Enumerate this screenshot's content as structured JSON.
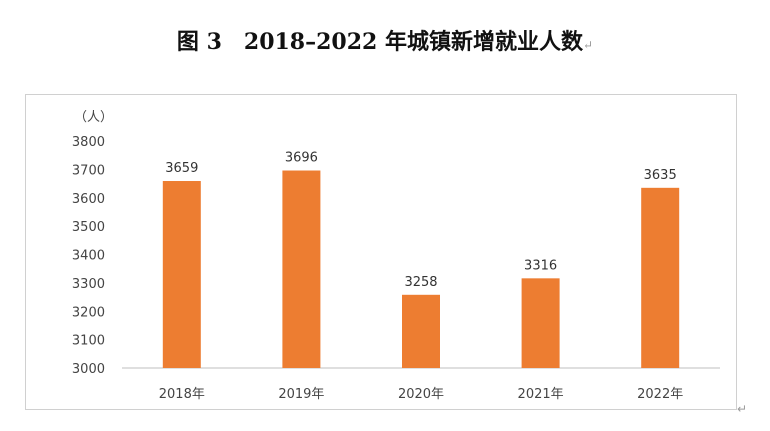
{
  "title": "图 3　2018–2022 年城镇新增就业人数",
  "title_mark": "↵",
  "page_mark": "↵",
  "chart_data": {
    "type": "bar",
    "title": "图 3　2018–2022 年城镇新增就业人数",
    "ylabel": "（人）",
    "xlabel": "",
    "categories": [
      "2018年",
      "2019年",
      "2020年",
      "2021年",
      "2022年"
    ],
    "values": [
      3659,
      3696,
      3258,
      3316,
      3635
    ],
    "data_labels": [
      "3659",
      "3696",
      "3258",
      "3316",
      "3635"
    ],
    "ylim": [
      3000,
      3800
    ],
    "yticks": [
      3000,
      3100,
      3200,
      3300,
      3400,
      3500,
      3600,
      3700,
      3800
    ],
    "grid": false,
    "legend": "none",
    "bar_color": "#ED7D31"
  }
}
